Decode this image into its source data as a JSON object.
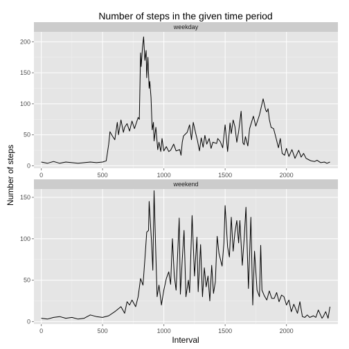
{
  "chart_data": {
    "type": "line",
    "title": "Number of steps in the given time period",
    "xlabel": "Interval",
    "ylabel": "Number of steps",
    "xlim": [
      -60,
      2420
    ],
    "x_ticks": [
      0,
      500,
      1000,
      1500,
      2000
    ],
    "grid": true,
    "panels": [
      {
        "name": "weekday",
        "ylim": [
          -4,
          216
        ],
        "y_ticks": [
          0,
          50,
          100,
          150,
          200
        ],
        "series": [
          {
            "x": [
              0,
              50,
              100,
              150,
              200,
              250,
              300,
              350,
              400,
              450,
              500,
              530,
              550,
              560,
              580,
              600,
              620,
              630,
              650,
              670,
              680,
              700,
              720,
              740,
              760,
              790,
              800,
              810,
              815,
              825,
              835,
              845,
              855,
              860,
              870,
              880,
              885,
              895,
              905,
              915,
              920,
              935,
              950,
              960,
              975,
              985,
              1000,
              1020,
              1040,
              1055,
              1080,
              1100,
              1130,
              1140,
              1150,
              1160,
              1190,
              1210,
              1225,
              1240,
              1260,
              1275,
              1290,
              1305,
              1320,
              1335,
              1350,
              1370,
              1385,
              1400,
              1430,
              1440,
              1460,
              1480,
              1500,
              1520,
              1540,
              1550,
              1565,
              1580,
              1595,
              1610,
              1630,
              1645,
              1655,
              1665,
              1685,
              1700,
              1730,
              1750,
              1780,
              1810,
              1830,
              1840,
              1850,
              1860,
              1875,
              1895,
              1915,
              1935,
              1950,
              1965,
              1985,
              2000,
              2020,
              2045,
              2070,
              2100,
              2120,
              2140,
              2160,
              2180,
              2200,
              2230,
              2250,
              2280,
              2310,
              2330,
              2355
            ],
            "values": [
              6,
              4,
              7,
              4,
              6,
              5,
              4,
              5,
              6,
              5,
              6,
              8,
              35,
              55,
              48,
              42,
              70,
              50,
              74,
              54,
              62,
              68,
              56,
              72,
              60,
              78,
              75,
              182,
              160,
              190,
              208,
              170,
              186,
              142,
              175,
              125,
              136,
              110,
              58,
              70,
              40,
              62,
              26,
              38,
              23,
              44,
              24,
              31,
              23,
              25,
              35,
              24,
              26,
              17,
              38,
              48,
              54,
              66,
              42,
              70,
              52,
              40,
              24,
              45,
              30,
              49,
              35,
              44,
              28,
              38,
              36,
              44,
              39,
              29,
              66,
              23,
              69,
              52,
              74,
              63,
              38,
              55,
              88,
              37,
              34,
              47,
              32,
              60,
              80,
              64,
              82,
              108,
              90,
              87,
              92,
              75,
              62,
              60,
              45,
              29,
              44,
              20,
              17,
              28,
              15,
              26,
              12,
              25,
              14,
              20,
              12,
              10,
              8,
              7,
              9,
              5,
              6,
              4,
              6
            ]
          }
        ]
      },
      {
        "name": "weekend",
        "ylim": [
          -3,
          160
        ],
        "y_ticks": [
          0,
          50,
          100,
          150
        ],
        "series": [
          {
            "x": [
              0,
              50,
              100,
              150,
              200,
              250,
              300,
              350,
              400,
              450,
              500,
              550,
              600,
              650,
              680,
              700,
              720,
              740,
              770,
              790,
              810,
              830,
              845,
              860,
              875,
              880,
              900,
              910,
              920,
              935,
              945,
              960,
              980,
              1000,
              1020,
              1040,
              1055,
              1070,
              1085,
              1100,
              1125,
              1135,
              1150,
              1165,
              1180,
              1200,
              1210,
              1230,
              1250,
              1270,
              1280,
              1300,
              1315,
              1330,
              1345,
              1360,
              1375,
              1390,
              1405,
              1420,
              1435,
              1450,
              1475,
              1490,
              1500,
              1520,
              1535,
              1550,
              1565,
              1580,
              1595,
              1610,
              1620,
              1640,
              1655,
              1670,
              1690,
              1710,
              1725,
              1740,
              1760,
              1780,
              1790,
              1800,
              1820,
              1840,
              1860,
              1880,
              1900,
              1920,
              1940,
              1960,
              1980,
              2000,
              2020,
              2040,
              2060,
              2090,
              2110,
              2130,
              2150,
              2170,
              2190,
              2220,
              2240,
              2260,
              2290,
              2300,
              2320,
              2340,
              2355
            ],
            "values": [
              4,
              3,
              5,
              6,
              4,
              5,
              3,
              4,
              8,
              6,
              5,
              7,
              12,
              18,
              10,
              24,
              20,
              26,
              18,
              30,
              52,
              44,
              75,
              108,
              110,
              145,
              95,
              62,
              158,
              80,
              30,
              44,
              20,
              38,
              52,
              60,
              45,
              100,
              55,
              38,
              125,
              33,
              75,
              110,
              30,
              50,
              35,
              128,
              55,
              102,
              36,
              93,
              30,
              65,
              42,
              55,
              25,
              68,
              34,
              48,
              103,
              82,
              67,
              95,
              140,
              90,
              78,
              126,
              85,
              108,
              122,
              95,
              122,
              68,
              100,
              138,
              40,
              126,
              20,
              85,
              38,
              30,
              92,
              38,
              31,
              26,
              37,
              28,
              28,
              35,
              24,
              32,
              30,
              20,
              26,
              12,
              21,
              10,
              24,
              6,
              5,
              8,
              5,
              7,
              5,
              14,
              4,
              6,
              12,
              4,
              18
            ]
          }
        ]
      }
    ]
  },
  "colors": {
    "panel_background": "#e5e5e5",
    "grid_major": "#ffffff",
    "grid_minor": "#f2f2f2",
    "strip_background": "#cccccc",
    "line": "#000000"
  }
}
